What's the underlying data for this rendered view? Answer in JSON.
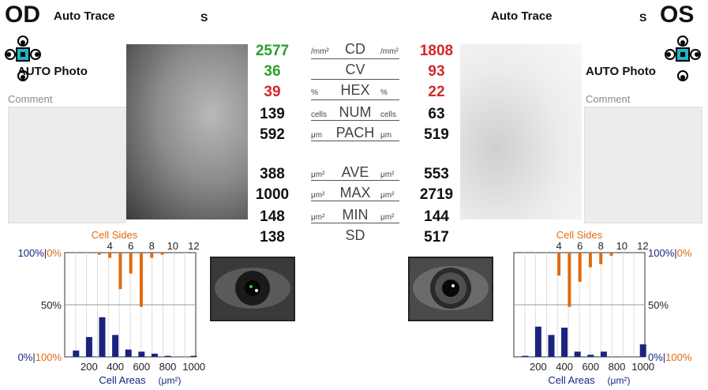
{
  "left_eye": {
    "label": "OD",
    "trace_mode": "Auto Trace",
    "s_label": "S",
    "photo_mode": "AUTO Photo",
    "comment_label": "Comment",
    "comment_value": ""
  },
  "right_eye": {
    "label": "OS",
    "trace_mode": "Auto Trace",
    "s_label": "S",
    "photo_mode": "AUTO Photo",
    "comment_label": "Comment",
    "comment_value": ""
  },
  "metrics": [
    {
      "name": "CD",
      "left_unit": "/mm²",
      "right_unit": "/mm²",
      "od": "2577",
      "os": "1808",
      "od_color": "#2ca02c",
      "os_color": "#d62728"
    },
    {
      "name": "CV",
      "left_unit": "",
      "right_unit": "",
      "od": "36",
      "os": "93",
      "od_color": "#2ca02c",
      "os_color": "#d62728"
    },
    {
      "name": "HEX",
      "left_unit": "%",
      "right_unit": "%",
      "od": "39",
      "os": "22",
      "od_color": "#d62728",
      "os_color": "#d62728"
    },
    {
      "name": "NUM",
      "left_unit": "cells",
      "right_unit": "cells",
      "od": "139",
      "os": "63",
      "od_color": "#111111",
      "os_color": "#111111"
    },
    {
      "name": "PACH",
      "left_unit": "μm",
      "right_unit": "μm",
      "od": "592",
      "os": "519",
      "od_color": "#111111",
      "os_color": "#111111"
    },
    {
      "name": "AVE",
      "left_unit": "μm²",
      "right_unit": "μm²",
      "od": "388",
      "os": "553",
      "od_color": "#111111",
      "os_color": "#111111"
    },
    {
      "name": "MAX",
      "left_unit": "μm²",
      "right_unit": "μm²",
      "od": "1000",
      "os": "2719",
      "od_color": "#111111",
      "os_color": "#111111"
    },
    {
      "name": "MIN",
      "left_unit": "μm²",
      "right_unit": "μm²",
      "od": "148",
      "os": "144",
      "od_color": "#111111",
      "os_color": "#111111"
    },
    {
      "name": "SD",
      "left_unit": "",
      "right_unit": "",
      "od": "138",
      "os": "517",
      "od_color": "#111111",
      "os_color": "#111111"
    }
  ],
  "colors": {
    "orange": "#e06a10",
    "navy": "#1a237e",
    "cyan_icon": "#1cb5c9"
  },
  "chart_data": [
    {
      "type": "bar",
      "eye": "OD",
      "top_title": "Cell Sides",
      "top_ticks": [
        "4",
        "6",
        "8",
        "10",
        "12"
      ],
      "bottom_title": "Cell Areas",
      "bottom_unit": "(μm²)",
      "bottom_ticks": [
        "200",
        "400",
        "600",
        "800",
        "1000"
      ],
      "y_left_labels": [
        "100%",
        "50%",
        "0%"
      ],
      "y_right_labels": [
        "0%",
        "",
        "100%"
      ],
      "sides": {
        "x": [
          3,
          4,
          5,
          6,
          7,
          8,
          9
        ],
        "values": [
          2,
          5,
          35,
          20,
          52,
          5,
          2
        ]
      },
      "areas": {
        "x": [
          100,
          200,
          300,
          400,
          500,
          600,
          700,
          800,
          900,
          1000
        ],
        "values": [
          6,
          19,
          38,
          21,
          7,
          5,
          3,
          1,
          0,
          1
        ]
      }
    },
    {
      "type": "bar",
      "eye": "OS",
      "top_title": "Cell Sides",
      "top_ticks": [
        "4",
        "6",
        "8",
        "10",
        "12"
      ],
      "bottom_title": "Cell Areas",
      "bottom_unit": "(μm²)",
      "bottom_ticks": [
        "200",
        "400",
        "600",
        "800",
        "1000"
      ],
      "y_left_labels": [
        "",
        "50%",
        "0%"
      ],
      "y_right_labels": [
        "100%",
        "0%",
        "0%"
      ],
      "y_right_top_label": "100%|0%",
      "y_right_bottom_label": "0%|100%",
      "sides": {
        "x": [
          4,
          5,
          6,
          7,
          8,
          9
        ],
        "values": [
          22,
          52,
          28,
          14,
          11,
          3
        ]
      },
      "areas": {
        "x": [
          100,
          200,
          300,
          400,
          500,
          600,
          700,
          800,
          900,
          1000
        ],
        "values": [
          1,
          29,
          21,
          28,
          5,
          2,
          5,
          0,
          0,
          12
        ]
      }
    }
  ]
}
